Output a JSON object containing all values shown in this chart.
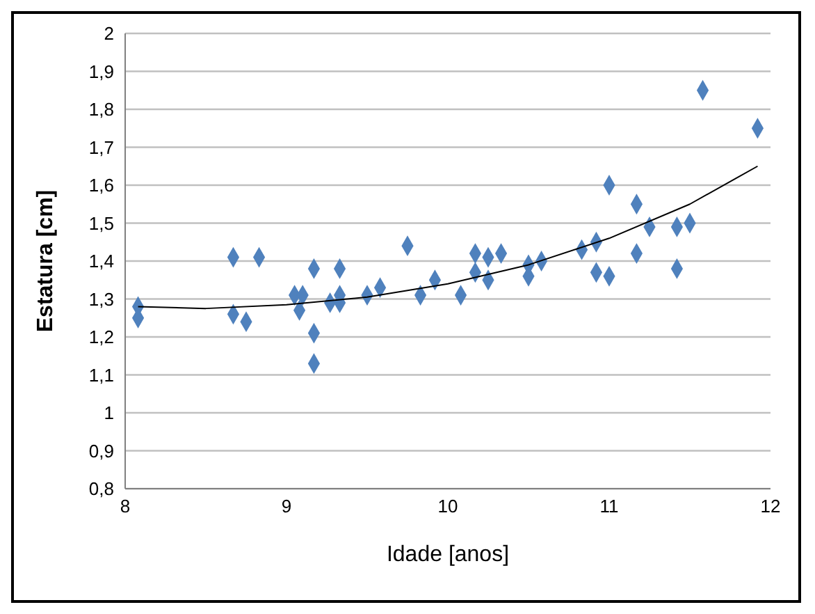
{
  "chart_data": {
    "type": "scatter",
    "xlabel": "Idade [anos]",
    "ylabel": "Estatura [cm]",
    "marker": "diamond",
    "grid": "y",
    "xlim": [
      8,
      12
    ],
    "xticks": [
      8,
      9,
      10,
      11,
      12
    ],
    "ylim": [
      0.8,
      2
    ],
    "yticks": [
      {
        "value": 0.8,
        "label": "0,8"
      },
      {
        "value": 0.9,
        "label": "0,9"
      },
      {
        "value": 1,
        "label": "1"
      },
      {
        "value": 1.1,
        "label": "1,1"
      },
      {
        "value": 1.2,
        "label": "1,2"
      },
      {
        "value": 1.3,
        "label": "1,3"
      },
      {
        "value": 1.4,
        "label": "1,4"
      },
      {
        "value": 1.5,
        "label": "1,5"
      },
      {
        "value": 1.6,
        "label": "1,6"
      },
      {
        "value": 1.7,
        "label": "1,7"
      },
      {
        "value": 1.8,
        "label": "1,8"
      },
      {
        "value": 1.9,
        "label": "1,9"
      },
      {
        "value": 2,
        "label": "2"
      }
    ],
    "series": [
      {
        "color": "#4f81bd",
        "x": [
          8.08,
          8.08,
          8.67,
          8.67,
          8.75,
          8.83,
          9.05,
          9.08,
          9.1,
          9.17,
          9.17,
          9.17,
          9.27,
          9.33,
          9.33,
          9.33,
          9.5,
          9.58,
          9.75,
          9.83,
          9.92,
          10.08,
          10.17,
          10.17,
          10.25,
          10.25,
          10.33,
          10.5,
          10.5,
          10.58,
          10.83,
          10.92,
          10.92,
          11,
          11,
          11.17,
          11.17,
          11.25,
          11.42,
          11.42,
          11.5,
          11.58,
          11.92
        ],
        "values": [
          1.28,
          1.25,
          1.41,
          1.26,
          1.24,
          1.41,
          1.31,
          1.27,
          1.31,
          1.38,
          1.21,
          1.13,
          1.29,
          1.38,
          1.31,
          1.29,
          1.31,
          1.33,
          1.44,
          1.31,
          1.35,
          1.31,
          1.42,
          1.37,
          1.41,
          1.35,
          1.42,
          1.39,
          1.36,
          1.4,
          1.43,
          1.45,
          1.37,
          1.6,
          1.36,
          1.55,
          1.42,
          1.49,
          1.49,
          1.38,
          1.5,
          1.85,
          1.75
        ]
      },
      {
        "type": "line",
        "marker": "none",
        "color": "#000000",
        "x": [
          8.08,
          8.5,
          9,
          9.5,
          10,
          10.5,
          11,
          11.5,
          11.92
        ],
        "values": [
          1.28,
          1.275,
          1.285,
          1.305,
          1.34,
          1.39,
          1.46,
          1.55,
          1.65
        ]
      }
    ]
  }
}
